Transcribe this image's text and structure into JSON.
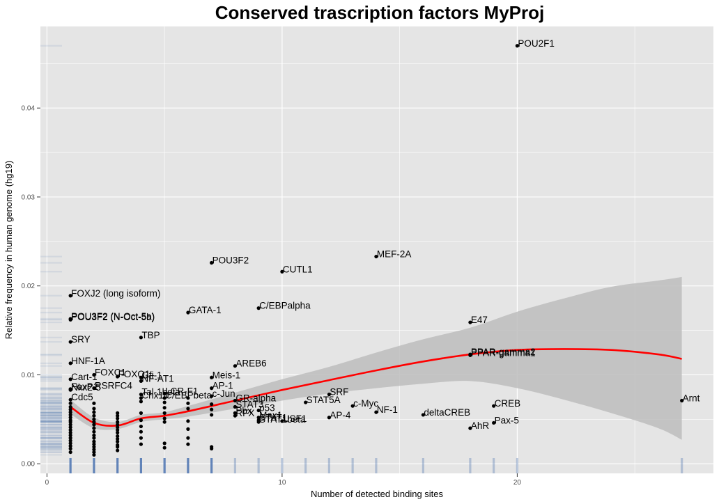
{
  "chart_data": {
    "type": "scatter",
    "title": "Conserved trascription factors MyProj",
    "xlabel": "Number of detected binding sites",
    "ylabel": "Relative frequency in human genome (hg19)",
    "xlim": [
      -0.4,
      28.2
    ],
    "ylim": [
      -0.0009,
      0.0495
    ],
    "x_ticks": [
      0,
      10,
      20
    ],
    "y_ticks": [
      0.0,
      0.01,
      0.02,
      0.03,
      0.04
    ],
    "y_tick_labels": [
      "0.00",
      "0.01",
      "0.02",
      "0.03",
      "0.04"
    ],
    "grid": true,
    "colors": {
      "panel": "#e5e5e5",
      "grid": "#ffffff",
      "points": "#000000",
      "smooth_line": "#ff0000",
      "confidence_band": "#bdbdbd",
      "rug": "#4a72b0"
    },
    "labeled_points": [
      {
        "label": "POU2F1",
        "x": 20,
        "y": 0.047
      },
      {
        "label": "MEF-2A",
        "x": 14,
        "y": 0.0233
      },
      {
        "label": "POU3F2",
        "x": 7,
        "y": 0.0226
      },
      {
        "label": "CUTL1",
        "x": 10,
        "y": 0.0216
      },
      {
        "label": "FOXJ2 (long isoform)",
        "x": 1,
        "y": 0.0189
      },
      {
        "label": "C/EBPalpha",
        "x": 9,
        "y": 0.0175
      },
      {
        "label": "GATA-1",
        "x": 6,
        "y": 0.017
      },
      {
        "label": "POU3F2 (N-Oct-5a)",
        "x": 1,
        "y": 0.0163
      },
      {
        "label": "POU3F2 (N-Oct-5b)",
        "x": 1,
        "y": 0.0162
      },
      {
        "label": "E47",
        "x": 18,
        "y": 0.0159
      },
      {
        "label": "TBP",
        "x": 4,
        "y": 0.0142
      },
      {
        "label": "SRY",
        "x": 1,
        "y": 0.0137
      },
      {
        "label": "PPAR-gamma2",
        "x": 18,
        "y": 0.0123
      },
      {
        "label": "PPAR-gamma1",
        "x": 18,
        "y": 0.0122
      },
      {
        "label": "HNF-1A",
        "x": 1,
        "y": 0.0113
      },
      {
        "label": "AREB6",
        "x": 8,
        "y": 0.011
      },
      {
        "label": "FOXC1",
        "x": 2,
        "y": 0.01
      },
      {
        "label": "FOXQ1",
        "x": 3,
        "y": 0.0098
      },
      {
        "label": "Gfi-1",
        "x": 4,
        "y": 0.0097
      },
      {
        "label": "Meis-1",
        "x": 7,
        "y": 0.0097
      },
      {
        "label": "Cart-1",
        "x": 1,
        "y": 0.0095
      },
      {
        "label": "NF-AT1",
        "x": 4,
        "y": 0.0093
      },
      {
        "label": "AP-1",
        "x": 7,
        "y": 0.0085
      },
      {
        "label": "Nkx2-5",
        "x": 1,
        "y": 0.0083
      },
      {
        "label": "RSRFC4",
        "x": 2,
        "y": 0.0085
      },
      {
        "label": "FoxP1",
        "x": 1,
        "y": 0.0084
      },
      {
        "label": "Tal-1beta",
        "x": 4,
        "y": 0.0078
      },
      {
        "label": "LCR-F1",
        "x": 5,
        "y": 0.0079
      },
      {
        "label": "c-Jun",
        "x": 7,
        "y": 0.0076
      },
      {
        "label": "Chx10",
        "x": 4,
        "y": 0.0074
      },
      {
        "label": "C/EBPbeta",
        "x": 5,
        "y": 0.0074
      },
      {
        "label": "Cdc5",
        "x": 1,
        "y": 0.0072
      },
      {
        "label": "SRF",
        "x": 12,
        "y": 0.0078
      },
      {
        "label": "GR-alpha",
        "x": 8,
        "y": 0.0071
      },
      {
        "label": "STAT5A",
        "x": 11,
        "y": 0.0069
      },
      {
        "label": "c-Myc",
        "x": 13,
        "y": 0.0065
      },
      {
        "label": "Arnt",
        "x": 27,
        "y": 0.0071
      },
      {
        "label": "CREB",
        "x": 19,
        "y": 0.0065
      },
      {
        "label": "STAT3",
        "x": 8,
        "y": 0.0064
      },
      {
        "label": "p53",
        "x": 9,
        "y": 0.006
      },
      {
        "label": "Pbx",
        "x": 8,
        "y": 0.0057
      },
      {
        "label": "NF-1",
        "x": 14,
        "y": 0.0058
      },
      {
        "label": "deltaCREB",
        "x": 16,
        "y": 0.0055
      },
      {
        "label": "RFX",
        "x": 8,
        "y": 0.0054
      },
      {
        "label": "Max1",
        "x": 9,
        "y": 0.0052
      },
      {
        "label": "AP-4",
        "x": 12,
        "y": 0.0052
      },
      {
        "label": "STAT1",
        "x": 9,
        "y": 0.0049
      },
      {
        "label": "USF1",
        "x": 10,
        "y": 0.0048
      },
      {
        "label": "STAT1beta",
        "x": 9,
        "y": 0.0047
      },
      {
        "label": "Pax-5",
        "x": 19,
        "y": 0.0046
      },
      {
        "label": "AhR",
        "x": 18,
        "y": 0.004
      }
    ],
    "unlabeled_points": [
      {
        "x": 1,
        "y": [
          0.0068,
          0.0064,
          0.0061,
          0.0058,
          0.0055,
          0.0052,
          0.0049,
          0.0047,
          0.0044,
          0.0041,
          0.0038,
          0.0035,
          0.0032,
          0.0029,
          0.0026,
          0.0023,
          0.002,
          0.0017,
          0.0013
        ]
      },
      {
        "x": 2,
        "y": [
          0.0068,
          0.0062,
          0.0058,
          0.0054,
          0.005,
          0.0047,
          0.0044,
          0.004,
          0.0036,
          0.0032,
          0.0029,
          0.0025,
          0.0022,
          0.0019,
          0.0016,
          0.0013,
          0.001
        ]
      },
      {
        "x": 3,
        "y": [
          0.0057,
          0.0054,
          0.0051,
          0.0047,
          0.0044,
          0.0041,
          0.0038,
          0.0035,
          0.0031,
          0.0028,
          0.0025,
          0.0021,
          0.0019,
          0.0015
        ]
      },
      {
        "x": 4,
        "y": [
          0.007,
          0.0057,
          0.0049,
          0.0042,
          0.0036,
          0.0029,
          0.0022
        ]
      },
      {
        "x": 5,
        "y": [
          0.0069,
          0.0063,
          0.0057,
          0.0051,
          0.0047,
          0.0023,
          0.0018
        ]
      },
      {
        "x": 6,
        "y": [
          0.0074,
          0.0068,
          0.0062,
          0.0048,
          0.0039,
          0.0029,
          0.0022
        ]
      },
      {
        "x": 7,
        "y": [
          0.0067,
          0.0061,
          0.0055,
          0.0019,
          0.0017
        ]
      }
    ],
    "smooth": {
      "method": "loess",
      "x": [
        1,
        2,
        3,
        4,
        5,
        6,
        8,
        10,
        12,
        14,
        16,
        18,
        20,
        22,
        24,
        26,
        27
      ],
      "y": [
        0.0064,
        0.0046,
        0.0043,
        0.0051,
        0.0054,
        0.0059,
        0.0071,
        0.0083,
        0.0094,
        0.0105,
        0.0115,
        0.0123,
        0.0128,
        0.0129,
        0.0128,
        0.0123,
        0.0118
      ],
      "ci_lower": [
        0.0056,
        0.004,
        0.0039,
        0.0047,
        0.005,
        0.0053,
        0.0062,
        0.0071,
        0.0079,
        0.0085,
        0.009,
        0.0093,
        0.0085,
        0.0072,
        0.0057,
        0.004,
        0.0027
      ],
      "ci_upper": [
        0.0072,
        0.0052,
        0.0047,
        0.0055,
        0.0058,
        0.0065,
        0.008,
        0.0095,
        0.0109,
        0.0125,
        0.014,
        0.0153,
        0.0171,
        0.0186,
        0.0199,
        0.0206,
        0.021
      ]
    },
    "rug_x": [
      1,
      2,
      3,
      4,
      5,
      6,
      7,
      8,
      9,
      10,
      11,
      12,
      13,
      14,
      16,
      18,
      19,
      20,
      27
    ],
    "rug_y_note": "semi-transparent rug marks along the y axis at each point's y value"
  }
}
